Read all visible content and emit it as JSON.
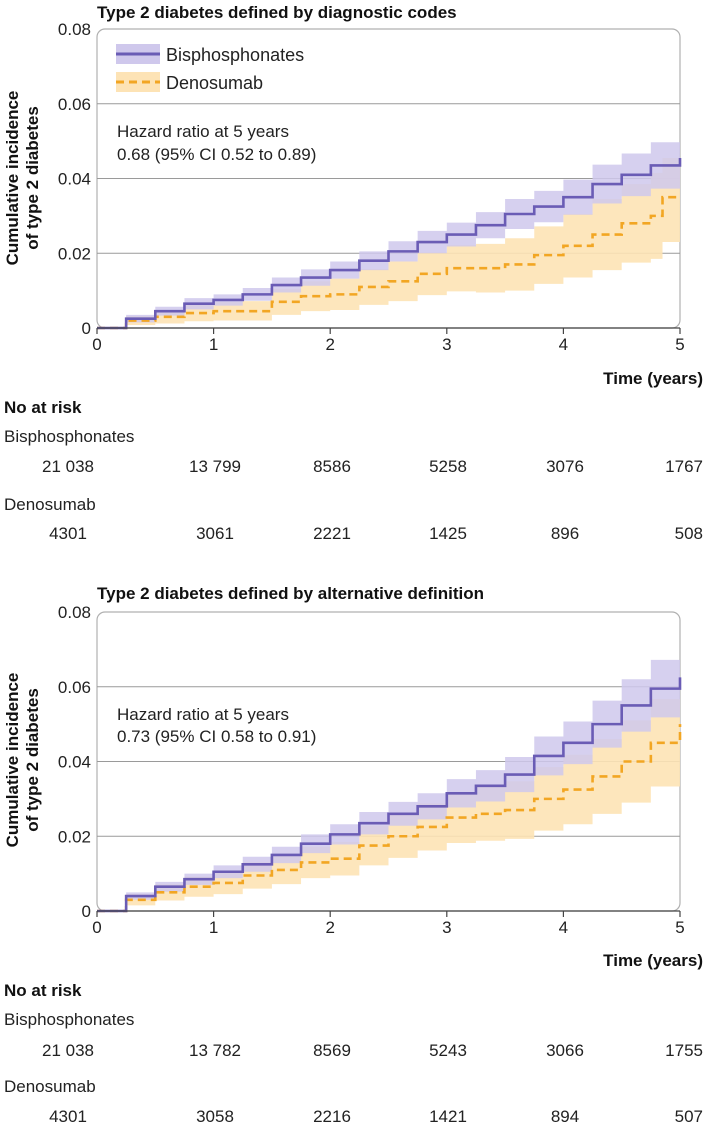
{
  "colors": {
    "bisphosphonates": "#6a5cb5",
    "bisphosphonates_band": "#cfc8ec",
    "denosumab": "#f2a623",
    "denosumab_band": "#fde3b5",
    "gridline": "#9a9a9a",
    "frame": "#b0b0b0"
  },
  "chart_data": [
    {
      "type": "line",
      "title": "Type 2 diabetes defined by diagnostic codes",
      "ylabel": [
        "Cumulative incidence",
        "of type 2 diabetes"
      ],
      "xlabel": "Time (years)",
      "xlim": [
        0,
        5
      ],
      "ylim": [
        0,
        0.08
      ],
      "xticks": [
        0,
        1,
        2,
        3,
        4,
        5
      ],
      "xtick_labels": [
        "0",
        "1",
        "2",
        "3",
        "4",
        "5"
      ],
      "yticks": [
        0,
        0.02,
        0.04,
        0.06,
        0.08
      ],
      "ytick_labels": [
        "0",
        "0.02",
        "0.04",
        "0.06",
        "0.08"
      ],
      "legend": [
        "Bisphosphonates",
        "Denosumab"
      ],
      "annotation": [
        "Hazard ratio at 5 years",
        "0.68 (95% CI 0.52 to 0.89)"
      ],
      "series": [
        {
          "name": "Bisphosphonates",
          "x": [
            0,
            0.25,
            0.5,
            0.75,
            1.0,
            1.25,
            1.5,
            1.75,
            2.0,
            2.25,
            2.5,
            2.75,
            3.0,
            3.25,
            3.5,
            3.75,
            4.0,
            4.25,
            4.5,
            4.75,
            5.0
          ],
          "y": [
            0,
            0.0025,
            0.0045,
            0.0065,
            0.0075,
            0.009,
            0.0115,
            0.0135,
            0.0155,
            0.018,
            0.0205,
            0.023,
            0.025,
            0.0275,
            0.0305,
            0.0325,
            0.035,
            0.0385,
            0.041,
            0.0435,
            0.0455
          ],
          "lower": [
            0,
            0.0015,
            0.0033,
            0.005,
            0.006,
            0.0073,
            0.0095,
            0.0113,
            0.0132,
            0.0155,
            0.0178,
            0.02,
            0.0218,
            0.024,
            0.0265,
            0.0283,
            0.0303,
            0.0333,
            0.0353,
            0.0373,
            0.039
          ],
          "upper": [
            0,
            0.0035,
            0.0057,
            0.008,
            0.009,
            0.0107,
            0.0135,
            0.0157,
            0.0178,
            0.0205,
            0.0232,
            0.026,
            0.0282,
            0.031,
            0.0345,
            0.0367,
            0.0397,
            0.0437,
            0.0467,
            0.0497,
            0.052
          ]
        },
        {
          "name": "Denosumab",
          "x": [
            0,
            0.25,
            0.5,
            0.75,
            1.0,
            1.25,
            1.5,
            1.75,
            2.0,
            2.25,
            2.5,
            2.75,
            3.0,
            3.25,
            3.5,
            3.75,
            4.0,
            4.25,
            4.5,
            4.75,
            4.85,
            5.0
          ],
          "y": [
            0,
            0.002,
            0.003,
            0.004,
            0.0045,
            0.0045,
            0.007,
            0.0085,
            0.009,
            0.011,
            0.0125,
            0.0145,
            0.016,
            0.016,
            0.017,
            0.0195,
            0.022,
            0.025,
            0.028,
            0.03,
            0.035,
            0.035
          ],
          "lower": [
            0,
            0.0008,
            0.0012,
            0.0018,
            0.002,
            0.002,
            0.0035,
            0.0045,
            0.0048,
            0.0062,
            0.0072,
            0.0088,
            0.0098,
            0.0095,
            0.01,
            0.0118,
            0.0135,
            0.0155,
            0.0175,
            0.0185,
            0.023,
            0.024
          ],
          "upper": [
            0,
            0.0032,
            0.0048,
            0.0062,
            0.007,
            0.0072,
            0.0105,
            0.0125,
            0.0132,
            0.0158,
            0.0178,
            0.0202,
            0.0222,
            0.0225,
            0.024,
            0.0272,
            0.0305,
            0.0345,
            0.0385,
            0.0415,
            0.0455,
            0.046
          ]
        }
      ],
      "risk_table": {
        "heading": "No at risk",
        "groups": [
          {
            "name": "Bisphosphonates",
            "values": [
              "21 038",
              "13 799",
              "8586",
              "5258",
              "3076",
              "1767"
            ]
          },
          {
            "name": "Denosumab",
            "values": [
              "4301",
              "3061",
              "2221",
              "1425",
              "896",
              "508"
            ]
          }
        ]
      }
    },
    {
      "type": "line",
      "title": "Type 2 diabetes defined by alternative definition",
      "ylabel": [
        "Cumulative incidence",
        "of type 2 diabetes"
      ],
      "xlabel": "Time (years)",
      "xlim": [
        0,
        5
      ],
      "ylim": [
        0,
        0.08
      ],
      "xticks": [
        0,
        1,
        2,
        3,
        4,
        5
      ],
      "xtick_labels": [
        "0",
        "1",
        "2",
        "3",
        "4",
        "5"
      ],
      "yticks": [
        0,
        0.02,
        0.04,
        0.06,
        0.08
      ],
      "ytick_labels": [
        "0",
        "0.02",
        "0.04",
        "0.06",
        "0.08"
      ],
      "legend": [],
      "annotation": [
        "Hazard ratio at 5 years",
        "0.73 (95% CI 0.58 to 0.91)"
      ],
      "series": [
        {
          "name": "Bisphosphonates",
          "x": [
            0,
            0.25,
            0.5,
            0.75,
            1.0,
            1.25,
            1.5,
            1.75,
            2.0,
            2.25,
            2.5,
            2.75,
            3.0,
            3.25,
            3.5,
            3.75,
            4.0,
            4.25,
            4.5,
            4.75,
            5.0
          ],
          "y": [
            0,
            0.004,
            0.0065,
            0.0085,
            0.0105,
            0.0125,
            0.015,
            0.018,
            0.0205,
            0.0235,
            0.026,
            0.028,
            0.0315,
            0.0335,
            0.0365,
            0.0415,
            0.045,
            0.05,
            0.055,
            0.0595,
            0.0625
          ],
          "lower": [
            0,
            0.003,
            0.0052,
            0.007,
            0.0088,
            0.0105,
            0.0128,
            0.0155,
            0.0178,
            0.0205,
            0.0228,
            0.0245,
            0.0277,
            0.0293,
            0.0318,
            0.0363,
            0.0393,
            0.0437,
            0.048,
            0.0518,
            0.0545
          ],
          "upper": [
            0,
            0.005,
            0.0078,
            0.01,
            0.0122,
            0.0145,
            0.0172,
            0.0205,
            0.0232,
            0.0265,
            0.0292,
            0.0315,
            0.0353,
            0.0377,
            0.0412,
            0.0467,
            0.0507,
            0.0563,
            0.062,
            0.0672,
            0.07
          ]
        },
        {
          "name": "Denosumab",
          "x": [
            0,
            0.25,
            0.5,
            0.75,
            1.0,
            1.25,
            1.5,
            1.75,
            2.0,
            2.25,
            2.5,
            2.75,
            3.0,
            3.25,
            3.5,
            3.75,
            4.0,
            4.25,
            4.5,
            4.75,
            5.0
          ],
          "y": [
            0,
            0.003,
            0.005,
            0.0065,
            0.0075,
            0.0095,
            0.011,
            0.013,
            0.014,
            0.0175,
            0.02,
            0.0225,
            0.025,
            0.026,
            0.027,
            0.03,
            0.0325,
            0.036,
            0.04,
            0.045,
            0.05
          ],
          "lower": [
            0,
            0.0015,
            0.0028,
            0.0038,
            0.0045,
            0.006,
            0.0072,
            0.0088,
            0.0095,
            0.0122,
            0.0142,
            0.0162,
            0.0182,
            0.0188,
            0.0193,
            0.0215,
            0.0232,
            0.026,
            0.029,
            0.0333,
            0.0385
          ],
          "upper": [
            0,
            0.0045,
            0.0072,
            0.0092,
            0.0105,
            0.013,
            0.0148,
            0.0172,
            0.0185,
            0.0228,
            0.0258,
            0.0288,
            0.0318,
            0.0332,
            0.0347,
            0.0385,
            0.0418,
            0.046,
            0.051,
            0.0567,
            0.0565
          ]
        }
      ],
      "risk_table": {
        "heading": "No at risk",
        "groups": [
          {
            "name": "Bisphosphonates",
            "values": [
              "21 038",
              "13 782",
              "8569",
              "5243",
              "3066",
              "1755"
            ]
          },
          {
            "name": "Denosumab",
            "values": [
              "4301",
              "3058",
              "2216",
              "1421",
              "894",
              "507"
            ]
          }
        ]
      }
    }
  ]
}
